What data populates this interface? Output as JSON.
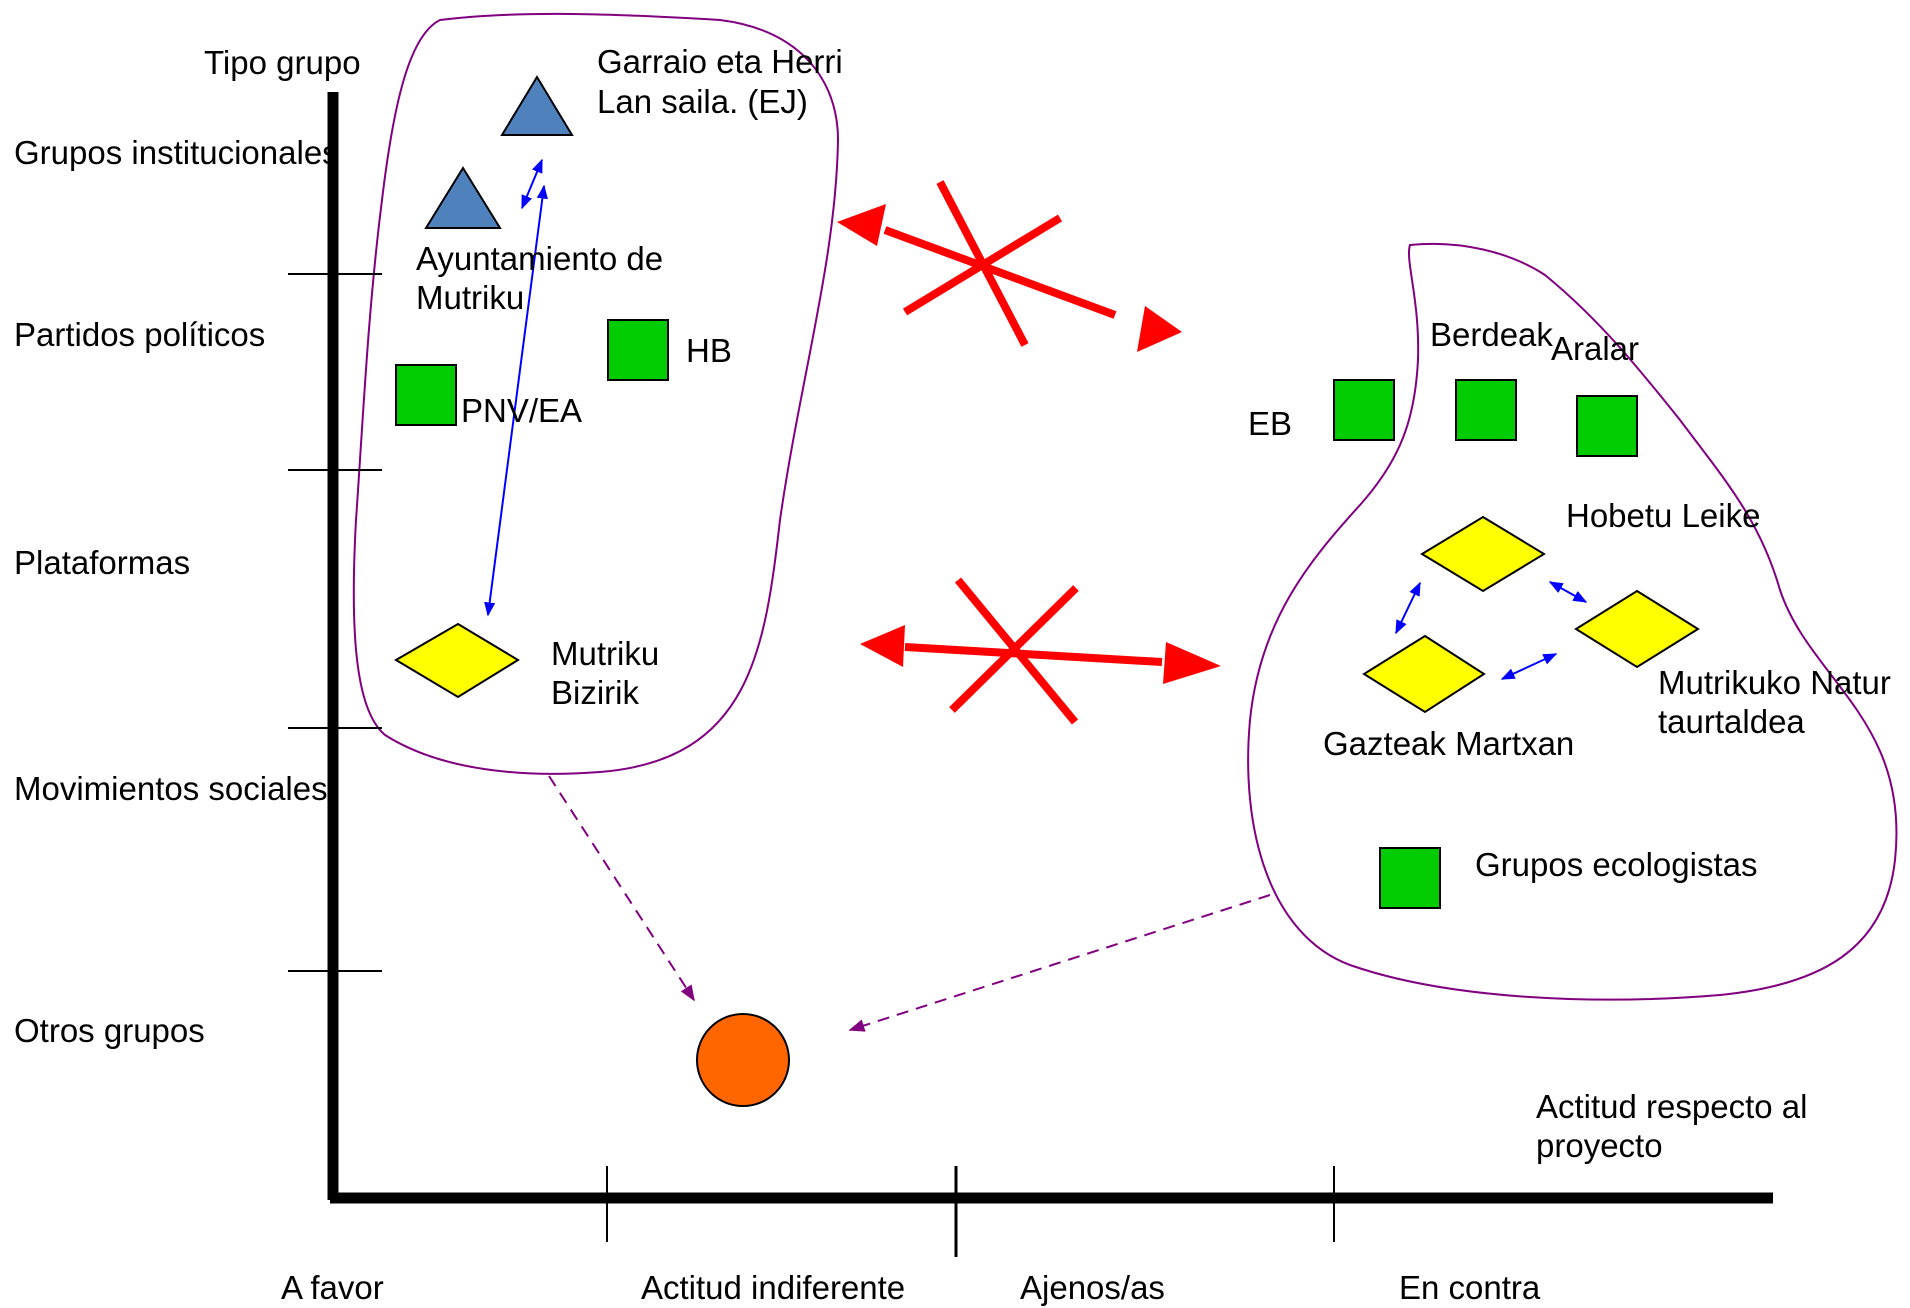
{
  "axes": {
    "y_title": "Tipo grupo",
    "x_title_line1": "Actitud respecto al",
    "x_title_line2": "proyecto",
    "y_categories": [
      "Grupos institucionales",
      "Partidos políticos",
      "Plataformas",
      "Movimientos sociales",
      "Otros grupos"
    ],
    "x_categories": [
      "A favor",
      "Actitud indiferente",
      "Ajenos/as",
      "En contra"
    ]
  },
  "nodes": {
    "garraio_line1": "Garraio eta Herri",
    "garraio_line2": "Lan saila. (EJ)",
    "ayuntamiento_line1": "Ayuntamiento de",
    "ayuntamiento_line2": "Mutriku",
    "hb": "HB",
    "pnv": "PNV/EA",
    "mutriku_bizirik_line1": "Mutriku",
    "mutriku_bizirik_line2": "Bizirik",
    "eb": "EB",
    "berdeak": "Berdeak",
    "aralar": "Aralar",
    "hobetu": "Hobetu Leike",
    "mutrikuko_line1": "Mutrikuko Natur",
    "mutrikuko_line2": "taurtaldea",
    "gazteak": "Gazteak Martxan",
    "ecologistas": "Grupos ecologistas"
  },
  "legend_colors": {
    "institutional": "#4F81BD",
    "political_party": "#00CC00",
    "platform": "#FFFF00",
    "other": "#FF6600",
    "group_outline": "#800080",
    "conflict": "#FF0000",
    "alliance": "#0000FF"
  }
}
